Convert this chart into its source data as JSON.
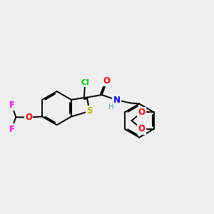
{
  "bg_color": "#efefef",
  "bond_color": "#000000",
  "bond_width": 1.4,
  "atom_colors": {
    "Cl": "#00cc00",
    "S": "#b8b800",
    "O": "#ff0000",
    "N": "#0000ff",
    "F": "#ff00ff",
    "H": "#888888",
    "C": "#000000"
  }
}
